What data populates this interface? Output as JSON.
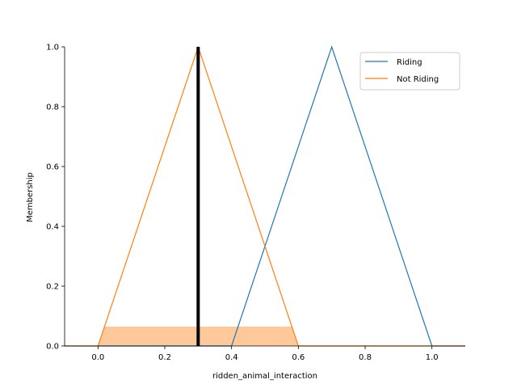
{
  "chart_data": {
    "type": "line",
    "xlabel": "ridden_animal_interaction",
    "ylabel": "Membership",
    "xlim": [
      -0.1,
      1.1
    ],
    "ylim": [
      0.0,
      1.0
    ],
    "x_ticks": [
      "0.0",
      "0.2",
      "0.4",
      "0.6",
      "0.8",
      "1.0"
    ],
    "y_ticks": [
      "0.0",
      "0.2",
      "0.4",
      "0.6",
      "0.8",
      "1.0"
    ],
    "grid": false,
    "legend_position": "top-right",
    "series": [
      {
        "name": "Riding",
        "color": "#1f77b4",
        "x": [
          -0.1,
          0.4,
          0.7,
          1.0,
          1.1
        ],
        "y": [
          0,
          0,
          1,
          0,
          0
        ]
      },
      {
        "name": "Not Riding",
        "color": "#ff7f0e",
        "x": [
          -0.1,
          0.0,
          0.3,
          0.6,
          1.1
        ],
        "y": [
          0,
          0,
          1,
          0,
          0
        ]
      }
    ],
    "activation": {
      "series": "Not Riding",
      "level": 0.065,
      "x_from": 0.0,
      "x_to": 0.6,
      "fill": "#ffc999"
    },
    "crisp_input": {
      "x": 0.3,
      "color": "#000000"
    }
  }
}
